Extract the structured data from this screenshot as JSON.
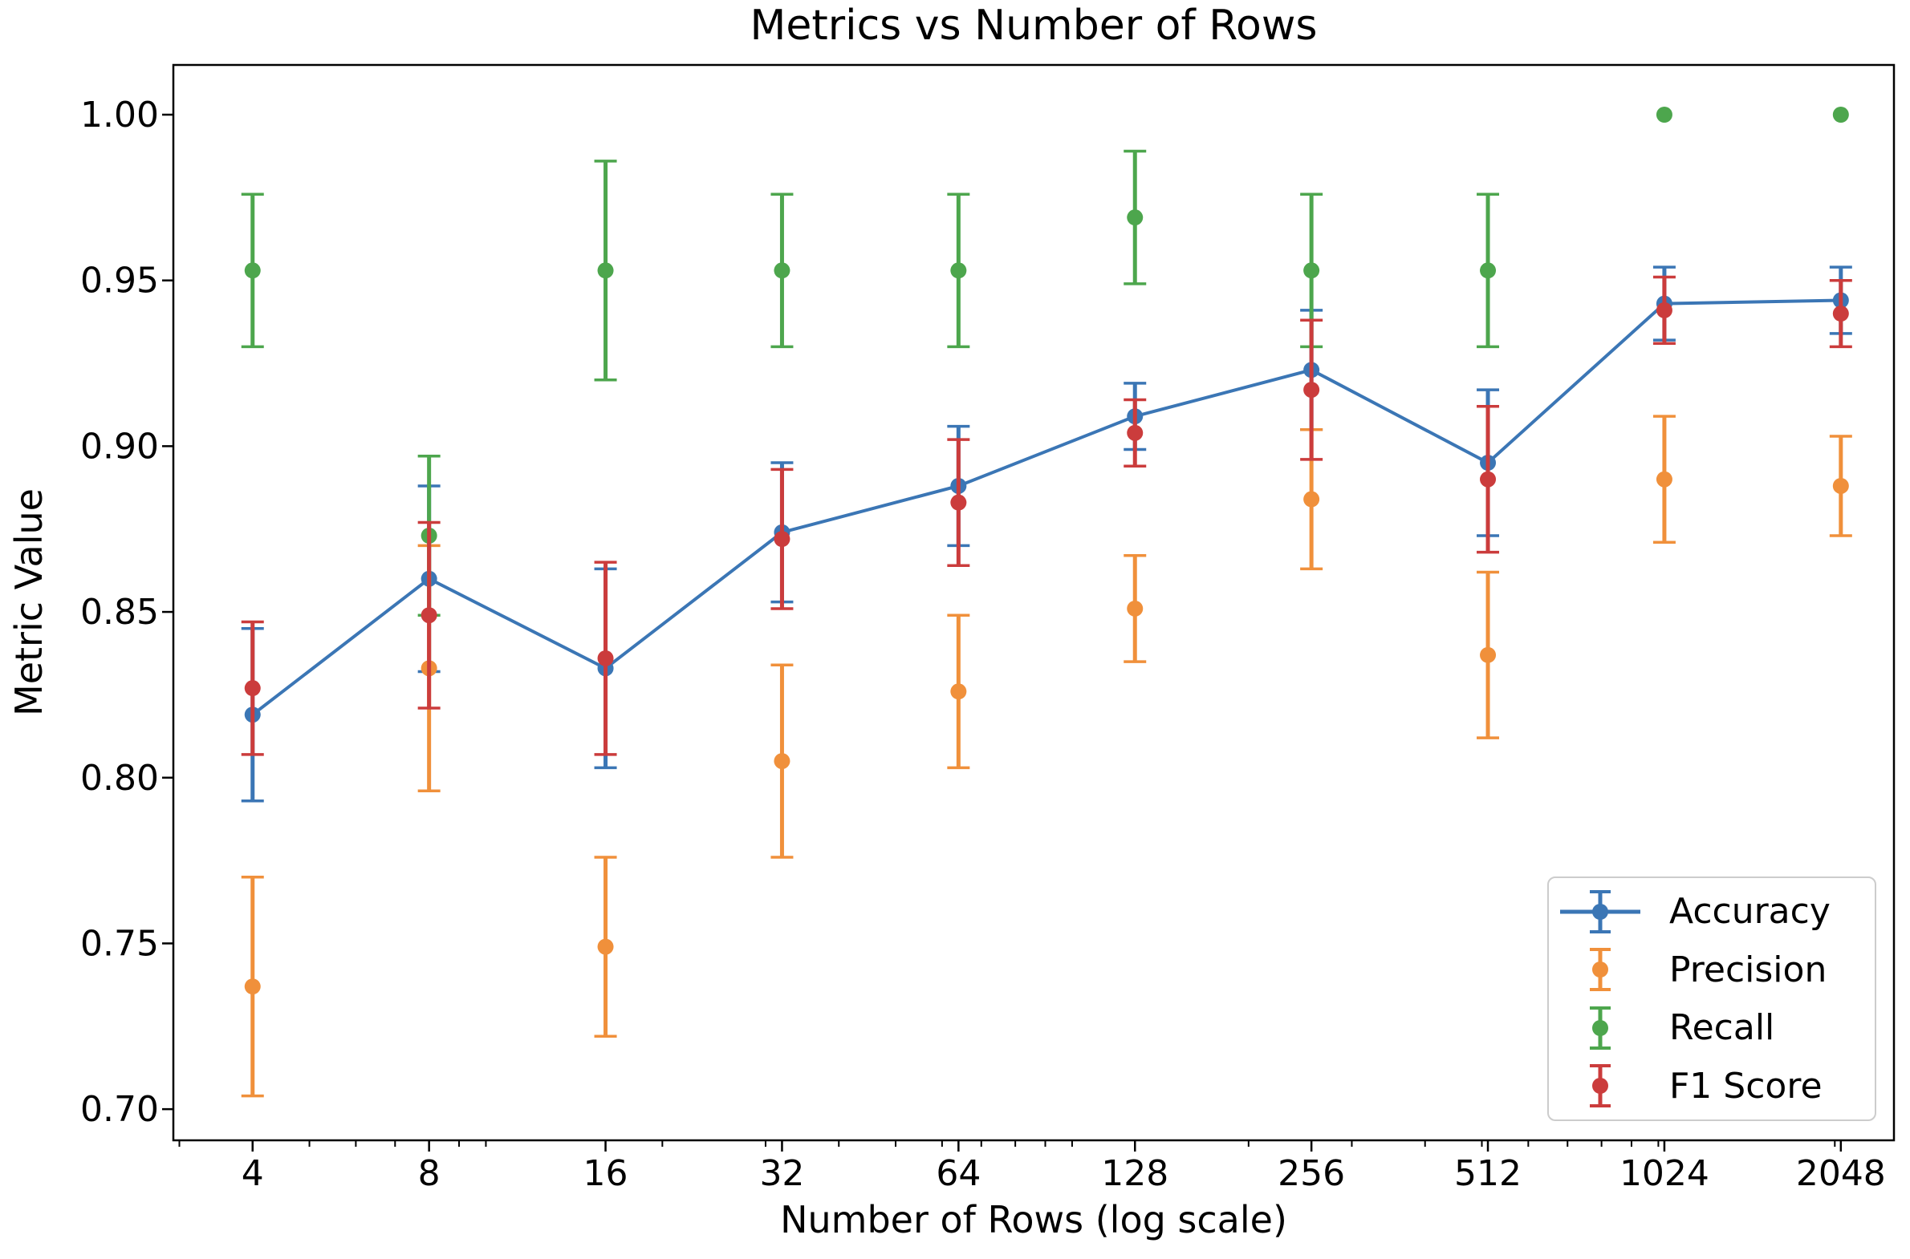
{
  "chart_data": {
    "type": "line",
    "title": "Metrics vs Number of Rows",
    "xlabel": "Number of Rows (log scale)",
    "ylabel": "Metric Value",
    "x_scale": "log",
    "grid": false,
    "legend_position": "lower right",
    "x": [
      4,
      8,
      16,
      32,
      64,
      128,
      256,
      512,
      1024,
      2048
    ],
    "x_tick_labels": [
      "4",
      "8",
      "16",
      "32",
      "64",
      "128",
      "256",
      "512",
      "1024",
      "2048"
    ],
    "x_minor_ticks": [
      3,
      5,
      6,
      7,
      9,
      10,
      20,
      30,
      40,
      50,
      60,
      70,
      80,
      90,
      100,
      200,
      300,
      400,
      500,
      600,
      700,
      800,
      900,
      1000,
      2000
    ],
    "yticks": [
      0.7,
      0.75,
      0.8,
      0.85,
      0.9,
      0.95,
      1.0
    ],
    "xlim": [
      2.93,
      2523
    ],
    "ylim": [
      0.6906,
      1.015
    ],
    "series": [
      {
        "name": "Accuracy",
        "color": "#3b76b5",
        "marker": "o",
        "has_line": true,
        "values": [
          0.819,
          0.86,
          0.833,
          0.874,
          0.888,
          0.909,
          0.923,
          0.895,
          0.943,
          0.944
        ],
        "errors": [
          0.026,
          0.028,
          0.03,
          0.021,
          0.018,
          0.01,
          0.018,
          0.022,
          0.011,
          0.01
        ]
      },
      {
        "name": "Precision",
        "color": "#f0903b",
        "marker": "o",
        "has_line": false,
        "values": [
          0.737,
          0.833,
          0.749,
          0.805,
          0.826,
          0.851,
          0.884,
          0.837,
          0.89,
          0.888
        ],
        "errors": [
          0.033,
          0.037,
          0.027,
          0.029,
          0.023,
          0.016,
          0.021,
          0.025,
          0.019,
          0.015
        ]
      },
      {
        "name": "Recall",
        "color": "#4da64d",
        "marker": "o",
        "has_line": false,
        "values": [
          0.953,
          0.873,
          0.953,
          0.953,
          0.953,
          0.969,
          0.953,
          0.953,
          1.0,
          1.0
        ],
        "errors": [
          0.023,
          0.024,
          0.033,
          0.023,
          0.023,
          0.02,
          0.023,
          0.023,
          0.0,
          0.0
        ]
      },
      {
        "name": "F1 Score",
        "color": "#cb3c3c",
        "marker": "o",
        "has_line": false,
        "values": [
          0.827,
          0.849,
          0.836,
          0.872,
          0.883,
          0.904,
          0.917,
          0.89,
          0.941,
          0.94
        ],
        "errors": [
          0.02,
          0.028,
          0.029,
          0.021,
          0.019,
          0.01,
          0.021,
          0.022,
          0.01,
          0.01
        ]
      }
    ]
  },
  "colors": {
    "spine": "#000000",
    "tick": "#000000",
    "text": "#000000",
    "legend_border": "#cccccc"
  }
}
